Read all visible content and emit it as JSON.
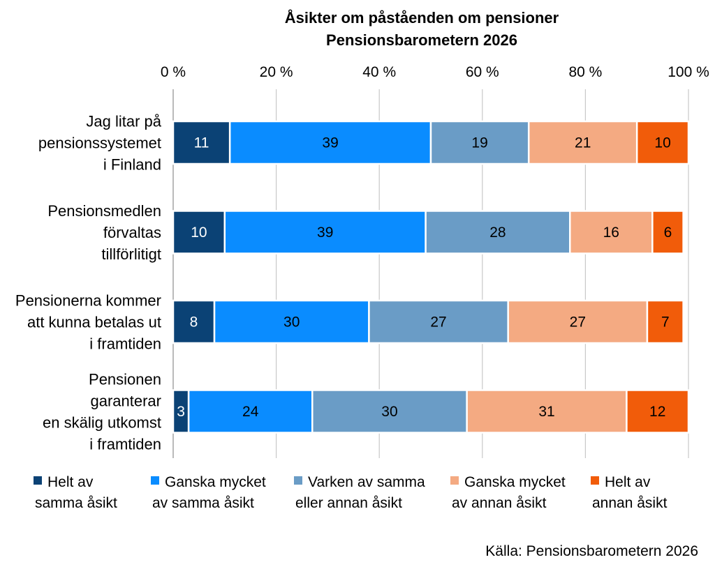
{
  "chart_data": {
    "type": "bar",
    "orientation": "horizontal",
    "stacked": true,
    "percent": true,
    "title": "Åsikter om påståenden om pensioner",
    "subtitle": "Pensionsbarometern 2026",
    "x_ticks": [
      "0 %",
      "20 %",
      "40 %",
      "60 %",
      "80 %",
      "100 %"
    ],
    "xlim": [
      0,
      100
    ],
    "grid": true,
    "legend_position": "bottom",
    "categories": [
      [
        "Jag litar på",
        "pensionssystemet",
        "i Finland"
      ],
      [
        "Pensionsmedlen",
        "förvaltas",
        "tillförlitigt"
      ],
      [
        "Pensionerna kommer",
        "att kunna betalas ut",
        "i framtiden"
      ],
      [
        "Pensionen",
        "garanterar",
        "en skälig utkomst",
        "i framtiden"
      ]
    ],
    "series": [
      {
        "name": [
          "Helt av",
          "samma åsikt"
        ],
        "color": "#0b4275",
        "label_color": "#ffffff",
        "values": [
          11,
          10,
          8,
          3
        ]
      },
      {
        "name": [
          "Ganska mycket",
          "av samma åsikt"
        ],
        "color": "#0a8cff",
        "label_color": "#000000",
        "values": [
          39,
          39,
          30,
          24
        ]
      },
      {
        "name": [
          "Varken av samma",
          "eller annan åsikt"
        ],
        "color": "#6a9cc6",
        "label_color": "#000000",
        "values": [
          19,
          28,
          27,
          30
        ]
      },
      {
        "name": [
          "Ganska mycket",
          "av annan åsikt"
        ],
        "color": "#f4aa82",
        "label_color": "#000000",
        "values": [
          21,
          16,
          27,
          31
        ]
      },
      {
        "name": [
          "Helt av",
          "annan åsikt"
        ],
        "color": "#f15c0a",
        "label_color": "#000000",
        "values": [
          10,
          6,
          7,
          12
        ]
      }
    ],
    "source": "Källa: Pensionsbarometern 2026"
  }
}
